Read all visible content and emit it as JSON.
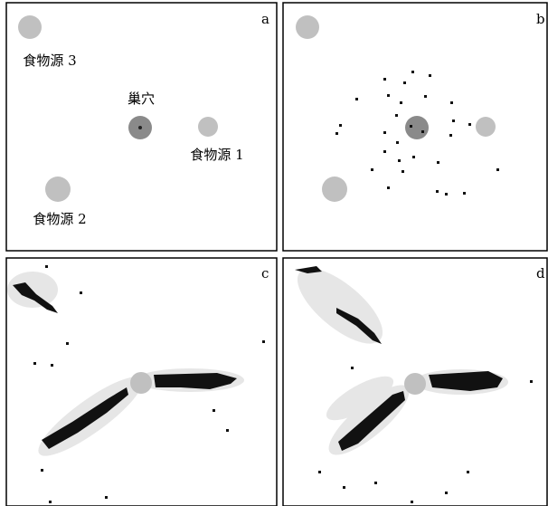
{
  "panels": [
    {
      "label": "a"
    },
    {
      "label": "b"
    },
    {
      "label": "c"
    },
    {
      "label": "d"
    }
  ],
  "annotations": {
    "food_3": "食物源 3",
    "nest": "巢穴",
    "food_1": "食物源 1",
    "food_2": "食物源 2"
  }
}
